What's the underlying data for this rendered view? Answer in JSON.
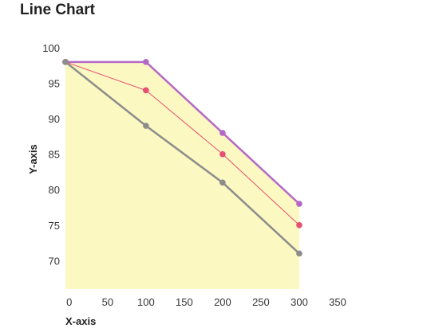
{
  "chart_data": {
    "type": "line",
    "title": "Line Chart",
    "xlabel": "X-axis",
    "ylabel": "Y-axis",
    "xlim": [
      -5,
      350
    ],
    "ylim": [
      66,
      100
    ],
    "x_ticks": [
      0,
      50,
      100,
      150,
      200,
      250,
      300,
      350
    ],
    "y_ticks": [
      70,
      75,
      80,
      85,
      90,
      95,
      100
    ],
    "grid": false,
    "legend": "none",
    "fill": {
      "under_series": 0,
      "color": "#fbf8c1",
      "area_range_x": [
        -5,
        300
      ]
    },
    "series": [
      {
        "color": "#b569c7",
        "stroke_width": 2.5,
        "points": [
          {
            "x": -5,
            "y": 98
          },
          {
            "x": 100,
            "y": 98
          },
          {
            "x": 200,
            "y": 88
          },
          {
            "x": 300,
            "y": 78
          }
        ]
      },
      {
        "color": "#e84f74",
        "stroke_width": 1,
        "points": [
          {
            "x": -5,
            "y": 98
          },
          {
            "x": 100,
            "y": 94
          },
          {
            "x": 200,
            "y": 85
          },
          {
            "x": 300,
            "y": 75
          }
        ]
      },
      {
        "color": "#8c8c8c",
        "stroke_width": 2.5,
        "points": [
          {
            "x": -5,
            "y": 98
          },
          {
            "x": 100,
            "y": 89
          },
          {
            "x": 200,
            "y": 81
          },
          {
            "x": 300,
            "y": 71
          }
        ]
      }
    ]
  }
}
